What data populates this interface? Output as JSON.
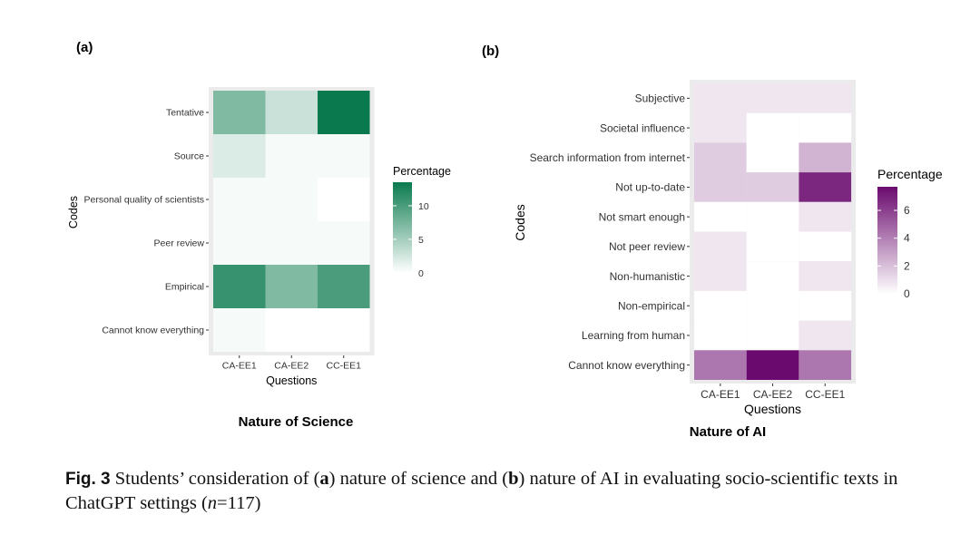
{
  "caption": {
    "label": "Fig. 3",
    "text_1": " Students’ consideration of (",
    "a": "a",
    "text_2": ") nature of science and (",
    "b": "b",
    "text_3": ") nature of AI in evaluating socio-scientific texts in ChatGPT settings (",
    "n": "n",
    "text_4": "=117)"
  },
  "chart_data": [
    {
      "type": "heatmap",
      "panel_label": "(a)",
      "title": "Nature of Science",
      "xlabel": "Questions",
      "ylabel": "Codes",
      "x": [
        "CA-EE1",
        "CA-EE2",
        "CC-EE1"
      ],
      "y": [
        "Tentative",
        "Source",
        "Personal quality of scientists",
        "Peer review",
        "Empirical",
        "Cannot know everything"
      ],
      "values": [
        [
          7,
          3,
          14
        ],
        [
          2,
          0.5,
          0.5
        ],
        [
          0.5,
          0.5,
          null
        ],
        [
          0.5,
          0.5,
          0.5
        ],
        [
          11,
          7,
          10
        ],
        [
          0.5,
          null,
          null
        ]
      ],
      "legend": {
        "title": "Percentage",
        "ticks": [
          0,
          5,
          10
        ],
        "range": [
          0,
          13.5
        ],
        "low_color": "#ffffff",
        "high_color": "#0a7a4e",
        "position": "right"
      },
      "grid": false
    },
    {
      "type": "heatmap",
      "panel_label": "(b)",
      "title": "Nature of AI",
      "xlabel": "Questions",
      "ylabel": "Codes",
      "x": [
        "CA-EE1",
        "CA-EE2",
        "CC-EE1"
      ],
      "y": [
        "Subjective",
        "Societal influence",
        "Search information from internet",
        "Not up-to-date",
        "Not smart enough",
        "Not peer review",
        "Non-humanistic",
        "Non-empirical",
        "Learning from human",
        "Cannot know everything"
      ],
      "values": [
        [
          0.8,
          0.8,
          0.8
        ],
        [
          0.8,
          null,
          null
        ],
        [
          1.6,
          null,
          2.4
        ],
        [
          1.6,
          1.6,
          6.8
        ],
        [
          null,
          null,
          0.8
        ],
        [
          0.8,
          null,
          null
        ],
        [
          0.8,
          null,
          0.8
        ],
        [
          null,
          null,
          null
        ],
        [
          null,
          null,
          0.8
        ],
        [
          4.3,
          7.7,
          4.3
        ]
      ],
      "legend": {
        "title": "Percentage",
        "ticks": [
          0,
          2,
          4,
          6
        ],
        "range": [
          0,
          7.7
        ],
        "low_color": "#ffffff",
        "high_color": "#6a0a6e",
        "position": "right"
      },
      "grid": false
    }
  ]
}
